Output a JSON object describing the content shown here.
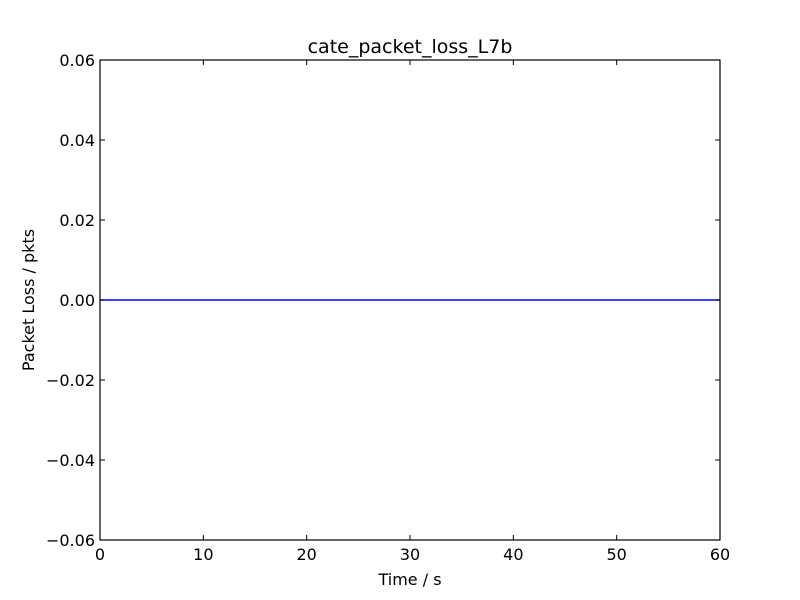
{
  "chart_data": {
    "type": "line",
    "title": "cate_packet_loss_L7b",
    "xlabel": "Time / s",
    "ylabel": "Packet Loss / pkts",
    "xlim": [
      0,
      60
    ],
    "ylim": [
      -0.06,
      0.06
    ],
    "x_ticks": [
      0,
      10,
      20,
      30,
      40,
      50,
      60
    ],
    "x_tick_labels": [
      "0",
      "10",
      "20",
      "30",
      "40",
      "50",
      "60"
    ],
    "y_ticks": [
      -0.06,
      -0.04,
      -0.02,
      0.0,
      0.02,
      0.04,
      0.06
    ],
    "y_tick_labels": [
      "−0.06",
      "−0.04",
      "−0.02",
      "0.00",
      "0.02",
      "0.04",
      "0.06"
    ],
    "grid": false,
    "series": [
      {
        "color": "#0000ff",
        "x": [
          0,
          60
        ],
        "y": [
          0,
          0
        ]
      }
    ]
  }
}
